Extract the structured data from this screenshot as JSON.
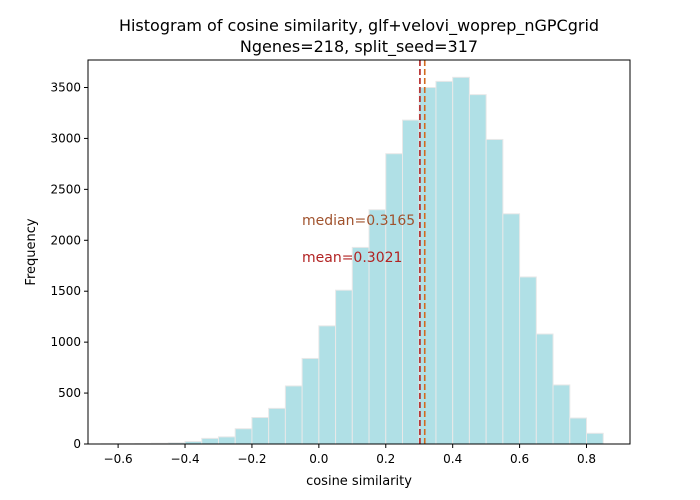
{
  "chart_data": {
    "type": "bar",
    "title_line1": "Histogram of cosine similarity, glf+velovi_woprep_nGPCgrid",
    "title_line2": "Ngenes=218, split_seed=317",
    "xlabel": "cosine similarity",
    "ylabel": "Frequency",
    "xlim": [
      -0.69,
      0.93
    ],
    "ylim": [
      0,
      3770
    ],
    "xticks": [
      -0.6,
      -0.4,
      -0.2,
      0.0,
      0.2,
      0.4,
      0.6,
      0.8
    ],
    "xtick_labels": [
      "−0.6",
      "−0.4",
      "−0.2",
      "0.0",
      "0.2",
      "0.4",
      "0.6",
      "0.8"
    ],
    "yticks": [
      0,
      500,
      1000,
      1500,
      2000,
      2500,
      3000,
      3500
    ],
    "ytick_labels": [
      "0",
      "500",
      "1000",
      "1500",
      "2000",
      "2500",
      "3000",
      "3500"
    ],
    "bin_edges": [
      -0.65,
      -0.6,
      -0.55,
      -0.5,
      -0.45,
      -0.4,
      -0.35,
      -0.3,
      -0.25,
      -0.2,
      -0.15,
      -0.1,
      -0.05,
      0.0,
      0.05,
      0.1,
      0.15,
      0.2,
      0.25,
      0.3,
      0.35,
      0.4,
      0.45,
      0.5,
      0.55,
      0.6,
      0.65,
      0.7,
      0.75,
      0.8,
      0.85
    ],
    "counts": [
      2,
      3,
      5,
      8,
      12,
      25,
      55,
      70,
      150,
      260,
      350,
      570,
      840,
      1160,
      1510,
      1930,
      2300,
      2850,
      3180,
      3500,
      3560,
      3600,
      3430,
      2990,
      2260,
      1640,
      1080,
      580,
      255,
      105
    ],
    "median": 0.3165,
    "mean": 0.3021,
    "median_label": "median=0.3165",
    "mean_label": "mean=0.3021",
    "median_color": "#d2691e",
    "mean_color": "#b22222",
    "median_text_color": "#a0522d",
    "mean_text_color": "#b22222",
    "bar_color": "#b0e0e6",
    "bar_edge_color": "#e8e8e8"
  }
}
